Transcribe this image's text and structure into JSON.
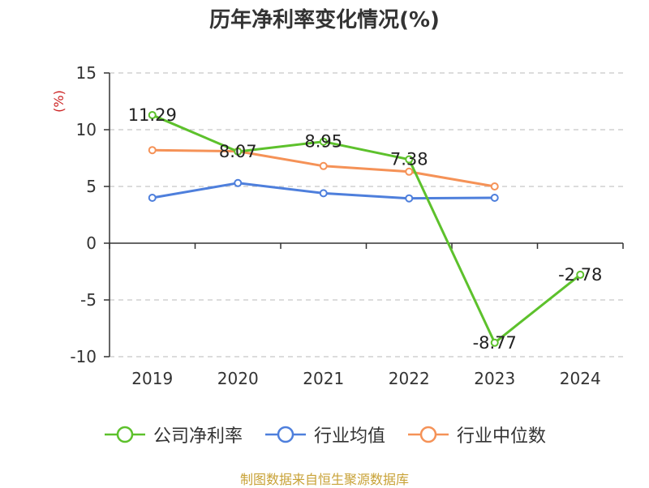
{
  "chart_data": {
    "type": "line",
    "title": "历年净利率变化情况(%)",
    "ylabel": "(%)",
    "xlabel": "",
    "categories": [
      "2019",
      "2020",
      "2021",
      "2022",
      "2023",
      "2024"
    ],
    "ylim": [
      -10,
      15
    ],
    "yticks": [
      "15",
      "10",
      "5",
      "0",
      "-5",
      "-10"
    ],
    "grid": true,
    "legend_position": "bottom",
    "series": [
      {
        "name": "公司净利率",
        "color": "#5dc12c",
        "values": [
          11.29,
          8.07,
          8.95,
          7.38,
          -8.77,
          -2.78
        ],
        "labels": [
          "11.29",
          "8.07",
          "8.95",
          "7.38",
          "-8.77",
          "-2.78"
        ]
      },
      {
        "name": "行业均值",
        "color": "#4e7fdc",
        "values": [
          4.0,
          5.3,
          4.4,
          3.95,
          4.0,
          null
        ]
      },
      {
        "name": "行业中位数",
        "color": "#f59257",
        "values": [
          8.2,
          8.1,
          6.8,
          6.3,
          5.0,
          null
        ]
      }
    ]
  },
  "source": {
    "text": "制图数据来自恒生聚源数据库",
    "color": "#c8a237"
  },
  "ylabel_color": "#cc2222"
}
